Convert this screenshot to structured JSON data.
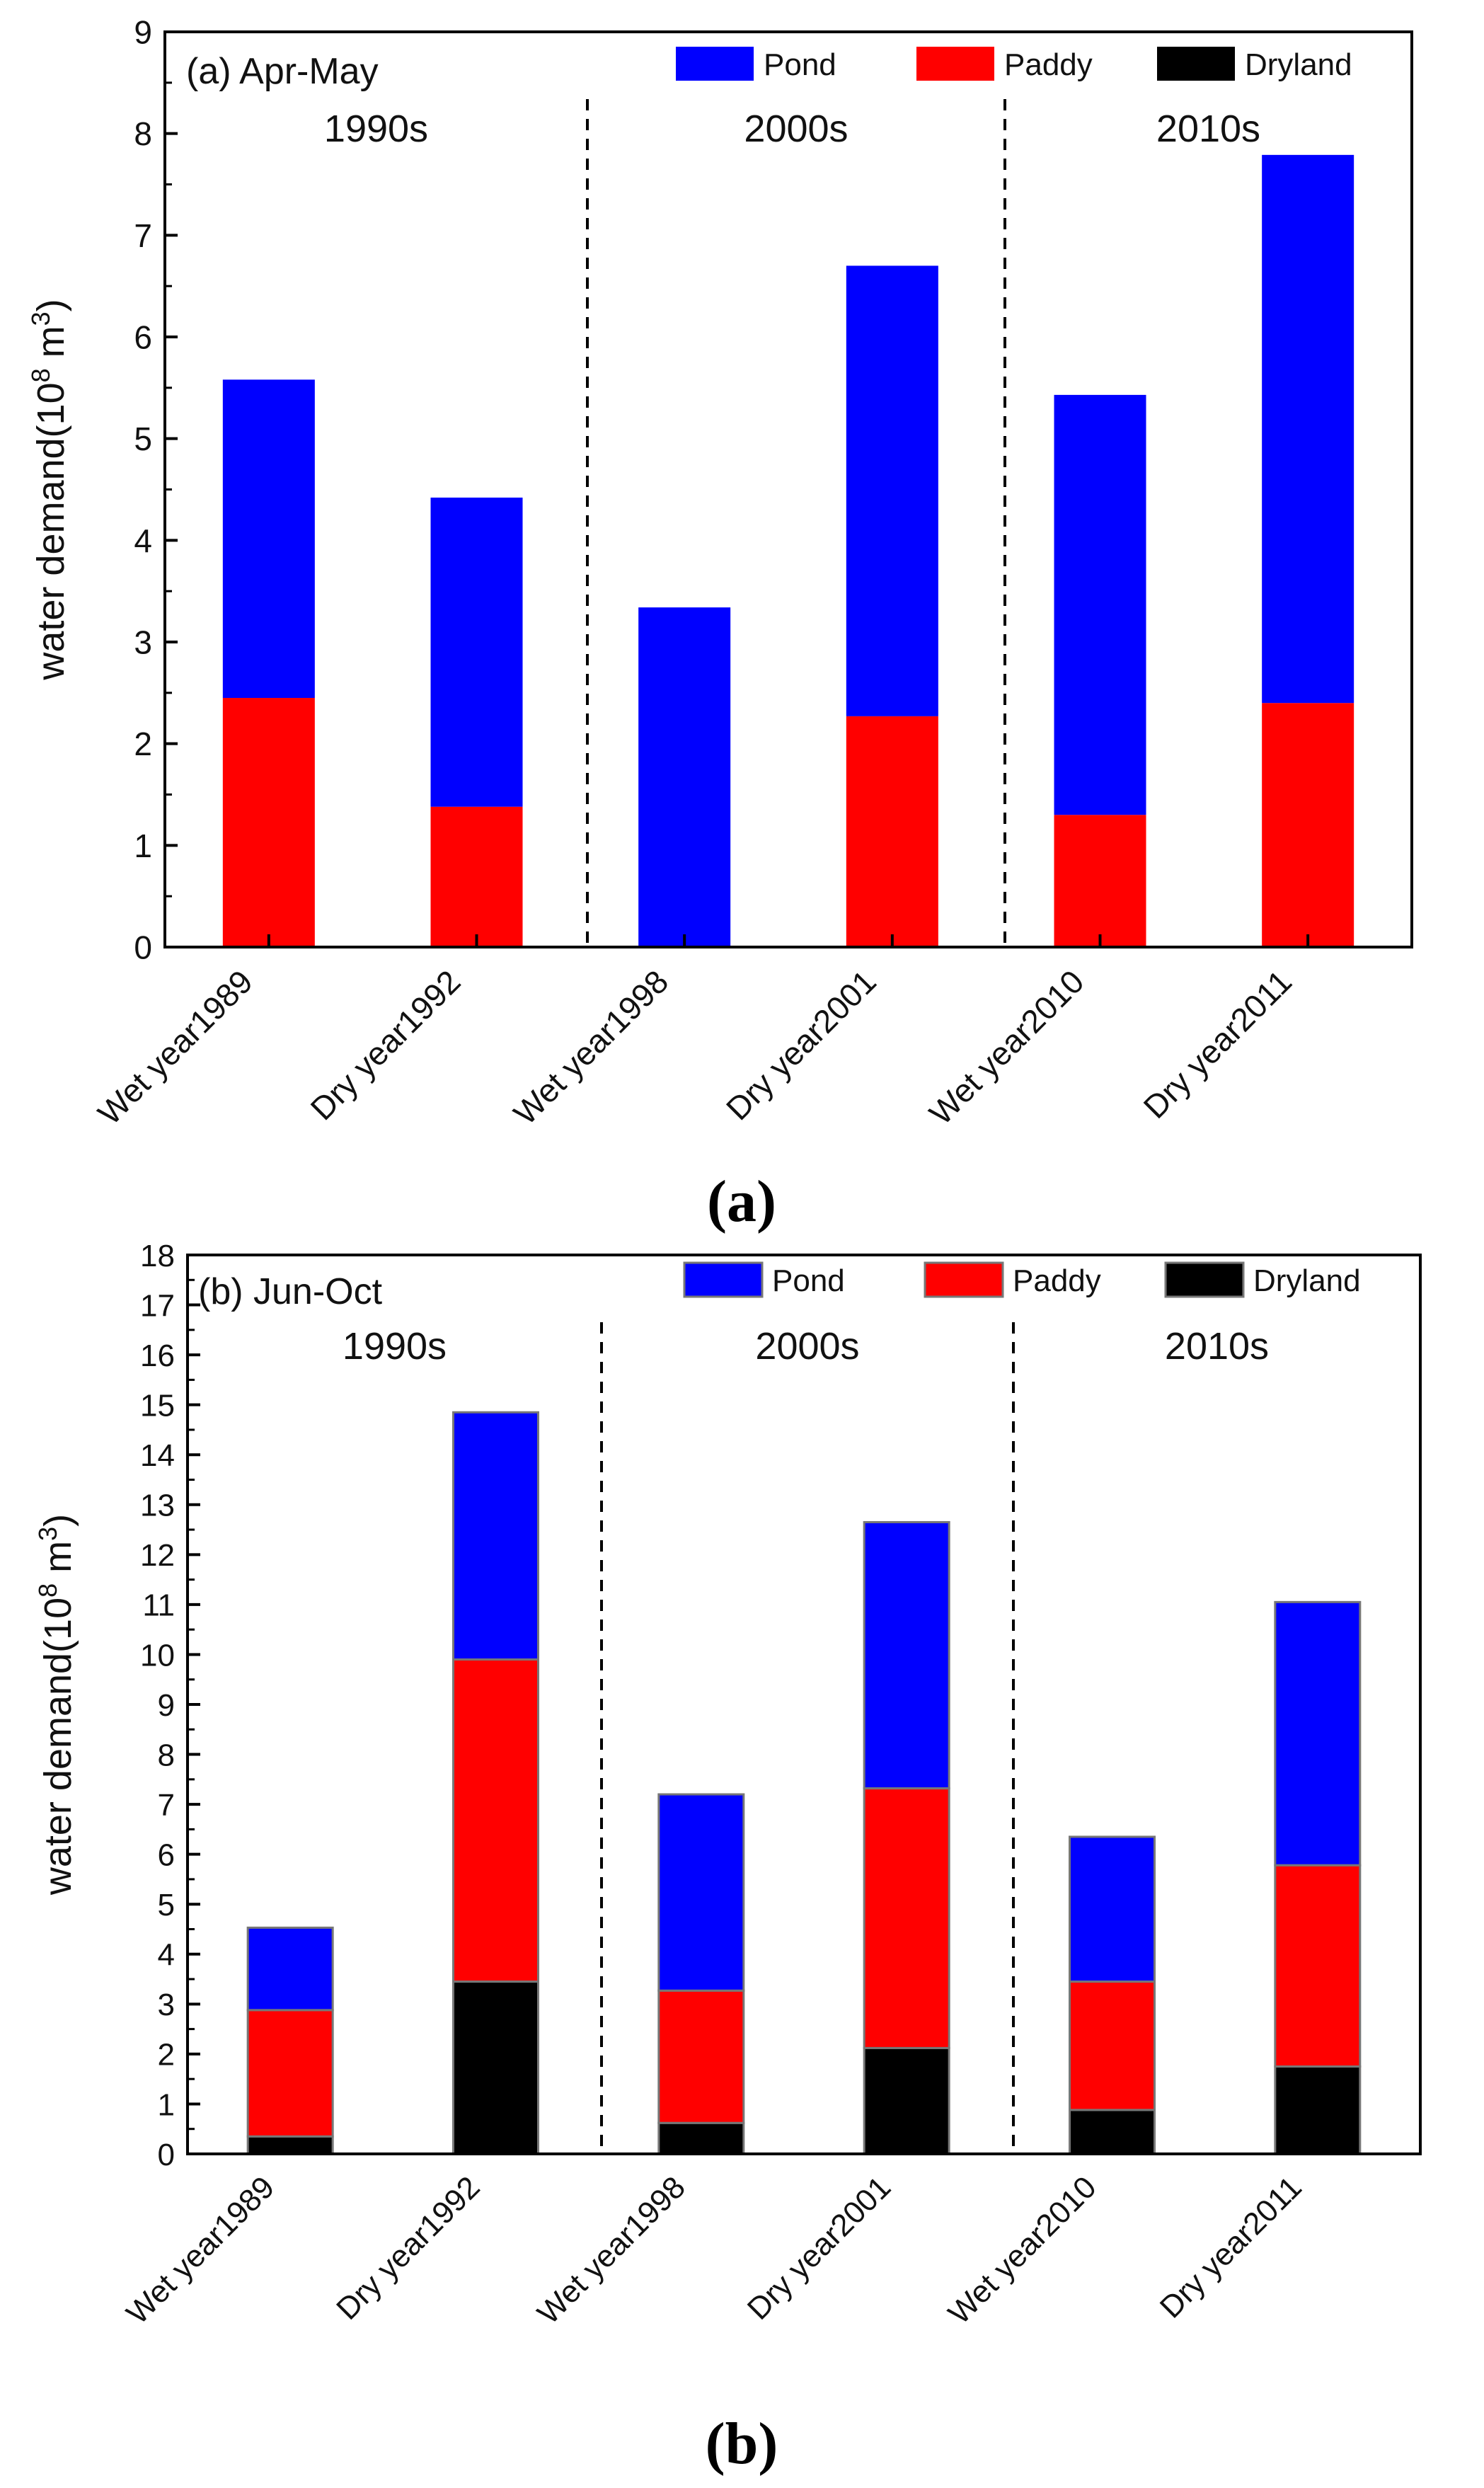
{
  "chart_data": [
    {
      "type": "bar",
      "stacked": true,
      "title": "(a) Apr-May",
      "ylabel_main": "water demand(10",
      "ylabel_sup1": "8",
      "ylabel_mid": " m",
      "ylabel_sup2": "3",
      "ylabel_end": ")",
      "ylim": [
        0,
        9
      ],
      "yticks": [
        "0",
        "1",
        "2",
        "3",
        "4",
        "5",
        "6",
        "7",
        "8",
        "9"
      ],
      "categories": [
        "Wet year1989",
        "Dry year1992",
        "Wet year1998",
        "Dry year2001",
        "Wet year2010",
        "Dry year2011"
      ],
      "decades": [
        "1990s",
        "2000s",
        "2010s"
      ],
      "legend": [
        "Pond",
        "Paddy",
        "Dryland"
      ],
      "caption": "a",
      "series": [
        {
          "name": "Dryland",
          "color": "#000000",
          "values": [
            0,
            0,
            0,
            0,
            0,
            0
          ]
        },
        {
          "name": "Paddy",
          "color": "#ff0000",
          "values": [
            2.45,
            1.38,
            0,
            2.27,
            1.3,
            2.4
          ]
        },
        {
          "name": "Pond",
          "color": "#0000ff",
          "values": [
            3.13,
            3.04,
            3.34,
            4.43,
            4.13,
            5.39
          ]
        }
      ]
    },
    {
      "type": "bar",
      "stacked": true,
      "title": "(b) Jun-Oct",
      "ylabel_main": "water demand(10",
      "ylabel_sup1": "8",
      "ylabel_mid": " m",
      "ylabel_sup2": "3",
      "ylabel_end": ")",
      "ylim": [
        0,
        18
      ],
      "yticks": [
        "0",
        "1",
        "2",
        "3",
        "4",
        "5",
        "6",
        "7",
        "8",
        "9",
        "10",
        "11",
        "12",
        "13",
        "14",
        "15",
        "16",
        "17",
        "18"
      ],
      "categories": [
        "Wet year1989",
        "Dry year1992",
        "Wet year1998",
        "Dry year2001",
        "Wet year2010",
        "Dry year2011"
      ],
      "decades": [
        "1990s",
        "2000s",
        "2010s"
      ],
      "legend": [
        "Pond",
        "Paddy",
        "Dryland"
      ],
      "caption": "b",
      "series": [
        {
          "name": "Dryland",
          "color": "#000000",
          "values": [
            0.35,
            3.45,
            0.62,
            2.12,
            0.88,
            1.75
          ]
        },
        {
          "name": "Paddy",
          "color": "#ff0000",
          "values": [
            2.53,
            6.45,
            2.65,
            5.2,
            2.57,
            4.03
          ]
        },
        {
          "name": "Pond",
          "color": "#0000ff",
          "values": [
            1.65,
            4.95,
            3.93,
            5.33,
            2.9,
            5.27
          ]
        }
      ]
    }
  ]
}
